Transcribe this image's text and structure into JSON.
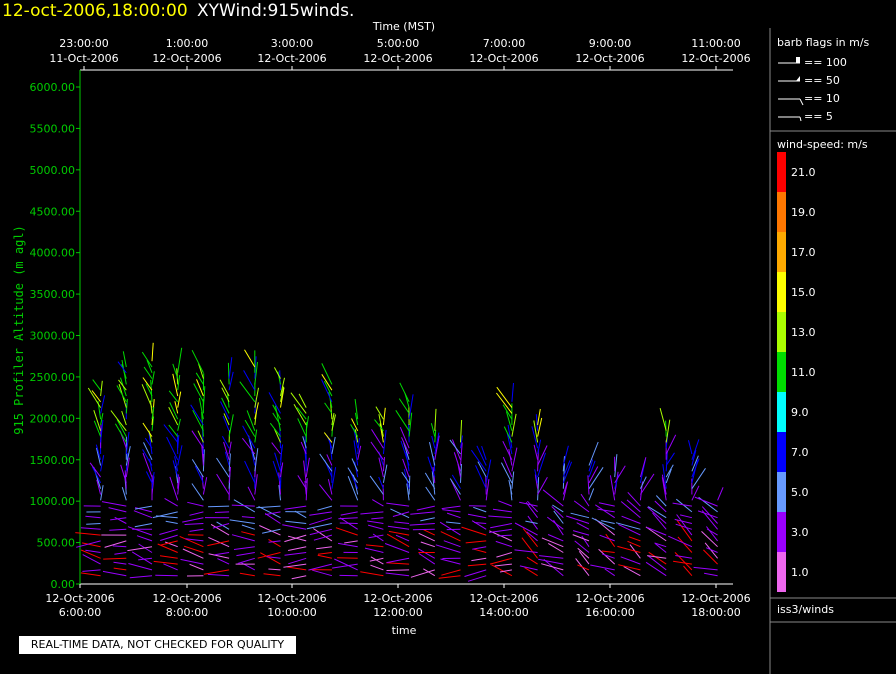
{
  "header": {
    "datetime": "12-oct-2006,18:00:00",
    "title": "XYWind:915winds."
  },
  "note": "REAL-TIME DATA, NOT CHECKED FOR QUALITY",
  "colors": {
    "background": "#000000",
    "header_datetime": "#ffff00",
    "y_axis": "#00cc00",
    "axis_text": "#ffffff"
  },
  "chart_data": {
    "type": "wind-barb time-height",
    "top_axis": {
      "title": "Time (MST)",
      "ticks": [
        {
          "time": "23:00:00",
          "date": "11-Oct-2006"
        },
        {
          "time": "1:00:00",
          "date": "12-Oct-2006"
        },
        {
          "time": "3:00:00",
          "date": "12-Oct-2006"
        },
        {
          "time": "5:00:00",
          "date": "12-Oct-2006"
        },
        {
          "time": "7:00:00",
          "date": "12-Oct-2006"
        },
        {
          "time": "9:00:00",
          "date": "12-Oct-2006"
        },
        {
          "time": "11:00:00",
          "date": "12-Oct-2006"
        }
      ]
    },
    "bottom_axis": {
      "title": "time",
      "ticks": [
        {
          "date": "12-Oct-2006",
          "time": "6:00:00"
        },
        {
          "date": "12-Oct-2006",
          "time": "8:00:00"
        },
        {
          "date": "12-Oct-2006",
          "time": "10:00:00"
        },
        {
          "date": "12-Oct-2006",
          "time": "12:00:00"
        },
        {
          "date": "12-Oct-2006",
          "time": "14:00:00"
        },
        {
          "date": "12-Oct-2006",
          "time": "16:00:00"
        },
        {
          "date": "12-Oct-2006",
          "time": "18:00:00"
        }
      ],
      "range_hours": [
        5.6,
        18.3
      ]
    },
    "y_axis": {
      "label": "915 Profiler Altitude (m agl)",
      "ticks": [
        "0.00",
        "500.00",
        "1000.00",
        "1500.00",
        "2000.00",
        "2500.00",
        "3000.00",
        "3500.00",
        "4000.00",
        "4500.00",
        "5000.00",
        "5500.00",
        "6000.00"
      ],
      "ylim": [
        0,
        6000
      ]
    },
    "barb_legend": {
      "title": "barb flags in m/s",
      "items": [
        "== 100",
        "== 50",
        "== 10",
        "== 5"
      ]
    },
    "speed_legend": {
      "title": "wind-speed: m/s",
      "bins": [
        {
          "label": "21.0",
          "color": "#ff0000"
        },
        {
          "label": "19.0",
          "color": "#ff7700"
        },
        {
          "label": "17.0",
          "color": "#ffaa00"
        },
        {
          "label": "15.0",
          "color": "#ffff00"
        },
        {
          "label": "13.0",
          "color": "#aaff00"
        },
        {
          "label": "11.0",
          "color": "#00dd00"
        },
        {
          "label": "9.0",
          "color": "#00ffff"
        },
        {
          "label": "7.0",
          "color": "#0000ff"
        },
        {
          "label": "5.0",
          "color": "#6699ff"
        },
        {
          "label": "3.0",
          "color": "#9900ff"
        },
        {
          "label": "1.0",
          "color": "#ee66ee"
        }
      ]
    },
    "station": "iss3/winds",
    "profiles": [
      {
        "t": 6.0,
        "top": 2350
      },
      {
        "t": 6.5,
        "top": 2650
      },
      {
        "t": 7.0,
        "top": 2750
      },
      {
        "t": 7.5,
        "top": 2550
      },
      {
        "t": 8.0,
        "top": 2600
      },
      {
        "t": 8.5,
        "top": 2500
      },
      {
        "t": 9.0,
        "top": 2650
      },
      {
        "t": 9.5,
        "top": 2500
      },
      {
        "t": 10.0,
        "top": 2150
      },
      {
        "t": 10.5,
        "top": 2450
      },
      {
        "t": 11.0,
        "top": 2050
      },
      {
        "t": 11.5,
        "top": 2050
      },
      {
        "t": 12.0,
        "top": 2200
      },
      {
        "t": 12.5,
        "top": 1850
      },
      {
        "t": 13.0,
        "top": 1750
      },
      {
        "t": 13.5,
        "top": 1500
      },
      {
        "t": 14.0,
        "top": 2200
      },
      {
        "t": 14.5,
        "top": 1950
      },
      {
        "t": 15.0,
        "top": 1450
      },
      {
        "t": 15.5,
        "top": 1450
      },
      {
        "t": 16.0,
        "top": 1400
      },
      {
        "t": 16.5,
        "top": 1350
      },
      {
        "t": 17.0,
        "top": 1850
      },
      {
        "t": 17.5,
        "top": 1600
      },
      {
        "t": 18.0,
        "top": 1050
      }
    ]
  }
}
